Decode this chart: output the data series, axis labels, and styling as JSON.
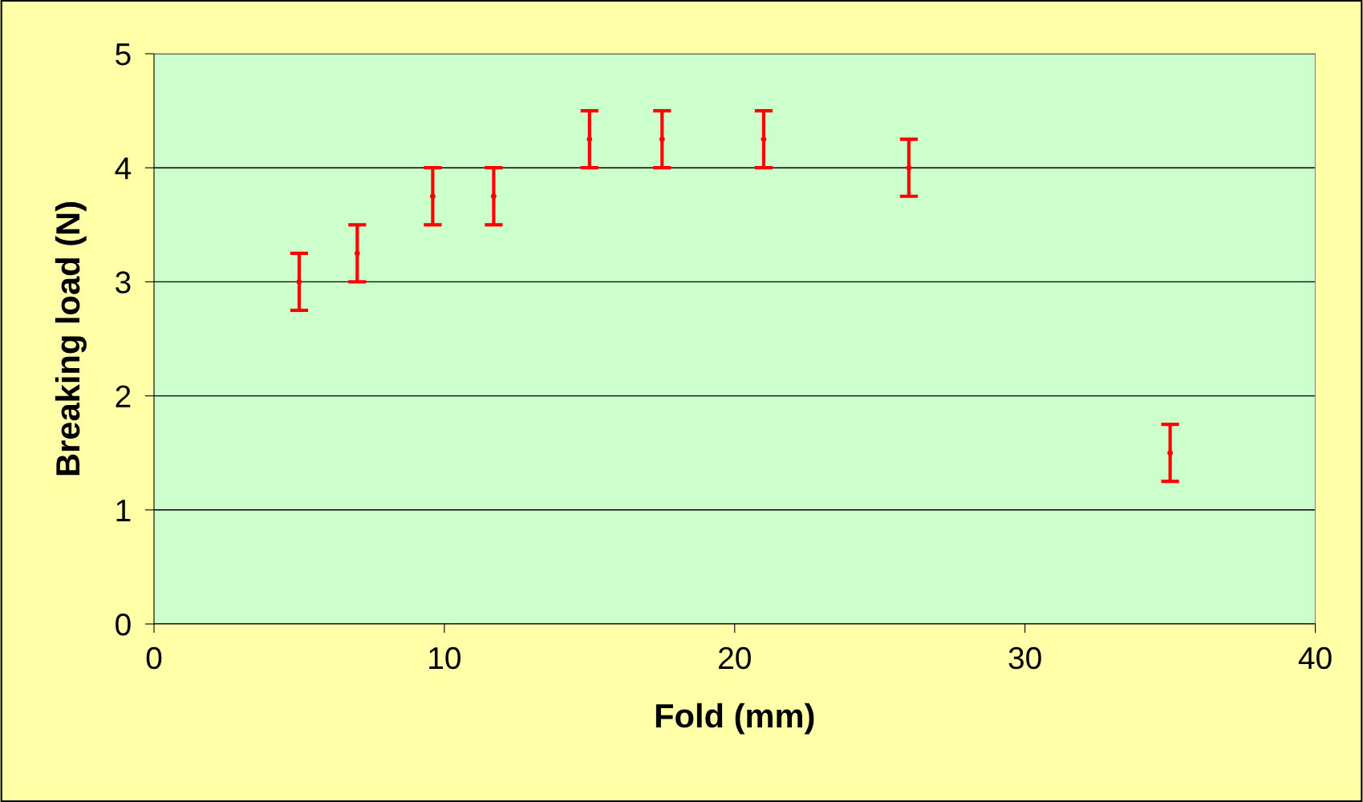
{
  "chart_data": {
    "type": "scatter",
    "xlabel": "Fold (mm)",
    "ylabel": "Breaking load (N)",
    "x": [
      5,
      7,
      9.6,
      11.7,
      15,
      17.5,
      21,
      26,
      35
    ],
    "series": [
      {
        "color": "#ff0000",
        "values": [
          3,
          3.25,
          3.75,
          3.75,
          4.25,
          4.25,
          4.25,
          4,
          1.5
        ],
        "errors": [
          0.25,
          0.25,
          0.25,
          0.25,
          0.25,
          0.25,
          0.25,
          0.25,
          0.25
        ]
      }
    ],
    "xlim": [
      0,
      40
    ],
    "xticks": [
      0,
      10,
      20,
      30,
      40
    ],
    "ylim": [
      0,
      5
    ],
    "yticks": [
      0,
      1,
      2,
      3,
      4,
      5
    ],
    "grid": "y",
    "marker": "circle",
    "legend": false
  }
}
